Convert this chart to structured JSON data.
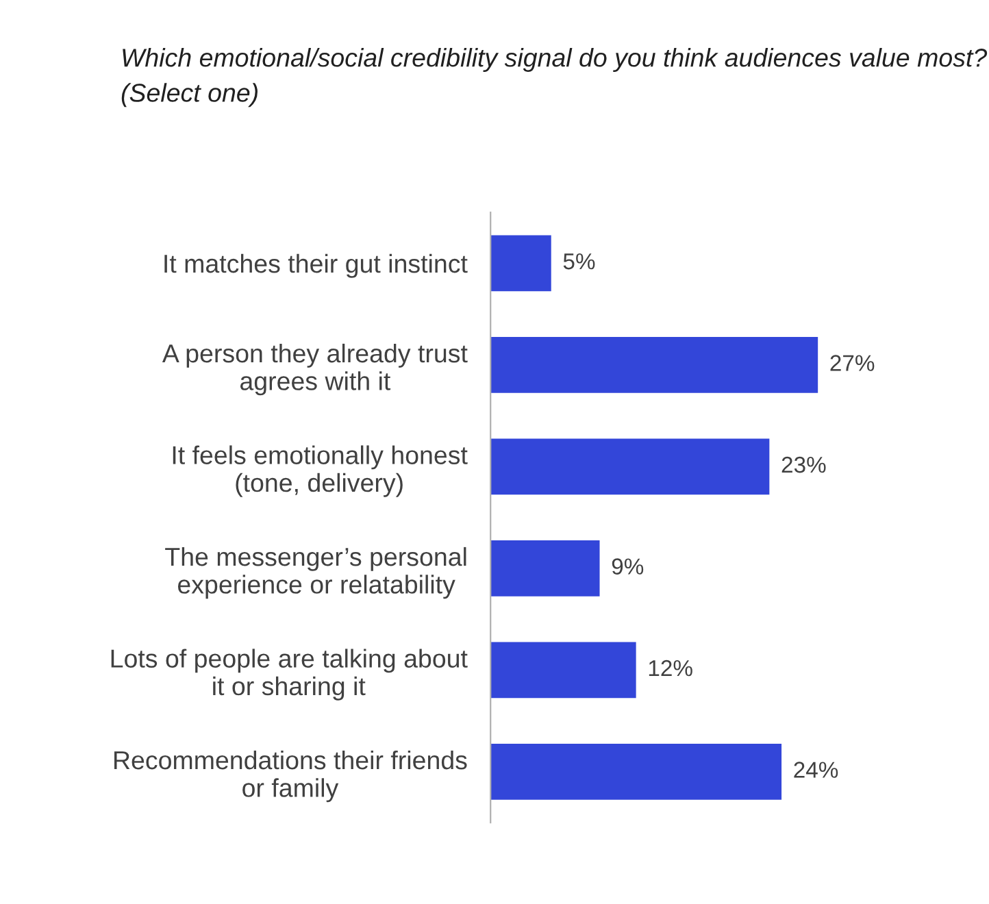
{
  "chart_data": {
    "type": "bar",
    "orientation": "horizontal",
    "title": "Which emotional/social credibility signal do you think audiences value most? (Select one)",
    "categories": [
      "It matches their gut instinct",
      "A person they already trust\nagrees with it",
      "It feels emotionally honest\n(tone, delivery)",
      "The messenger’s personal\nexperience or relatability",
      "Lots of people are talking about\nit or sharing it",
      "Recommendations their friends\nor family"
    ],
    "values": [
      5,
      27,
      23,
      9,
      12,
      24
    ],
    "value_labels": [
      "5%",
      "27%",
      "23%",
      "9%",
      "12%",
      "24%"
    ],
    "color": "#3346d9",
    "grid": false,
    "legend": false
  }
}
